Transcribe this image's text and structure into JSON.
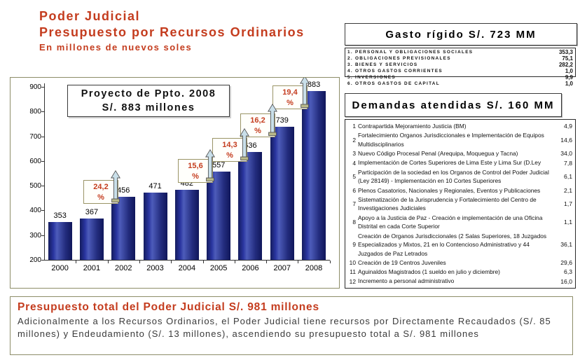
{
  "header": {
    "line1": "Poder Judicial",
    "line2": "Presupuesto por Recursos Ordinarios",
    "line3": "En millones de nuevos soles"
  },
  "chart": {
    "note_line1": "Proyecto de Ppto. 2008",
    "note_line2": "S/. 883 millones"
  },
  "chart_data": {
    "type": "bar",
    "title": "Proyecto de Ppto. 2008 S/. 883 millones",
    "categories": [
      "2000",
      "2001",
      "2002",
      "2003",
      "2004",
      "2005",
      "2006",
      "2007",
      "2008"
    ],
    "values": [
      353,
      367,
      456,
      471,
      482,
      557,
      636,
      739,
      883
    ],
    "bar_value_labels": [
      "353",
      "367",
      "456",
      "471",
      "482",
      "557",
      "636",
      "739",
      "883"
    ],
    "growth_callouts": [
      {
        "pct": "24,2",
        "unit": "%",
        "between": [
          "2001",
          "2002"
        ]
      },
      {
        "pct": "15,6",
        "unit": "%",
        "between": [
          "2004",
          "2005"
        ]
      },
      {
        "pct": "14,3",
        "unit": "%",
        "between": [
          "2005",
          "2006"
        ]
      },
      {
        "pct": "16,2",
        "unit": "%",
        "between": [
          "2006",
          "2007"
        ]
      },
      {
        "pct": "19,4",
        "unit": "%",
        "between": [
          "2007",
          "2008"
        ]
      }
    ],
    "ylim": [
      200,
      900
    ],
    "yticks": [
      200,
      300,
      400,
      500,
      600,
      700,
      800,
      900
    ],
    "xlabel": "",
    "ylabel": "",
    "grid": false,
    "legend": false,
    "bar_color": "#232c7e",
    "arrow_color": "#c9dfe9",
    "callout_text_color": "#c43c1e"
  },
  "gasto": {
    "title": "Gasto rígido S/. 723 MM",
    "items": [
      {
        "label": "1. PERSONAL Y OBLIGACIONES SOCIALES",
        "value": "353,3"
      },
      {
        "label": "2. OBLIGACIONES PREVISIONALES",
        "value": "75,1"
      },
      {
        "label": "3. BIENES Y SERVICIOS",
        "value": "282,2"
      },
      {
        "label": "4. OTROS GASTOS CORRIENTES",
        "value": "1,0"
      },
      {
        "label": "5. INVERSIONES",
        "value": "9,9"
      },
      {
        "label": "6. OTROS GASTOS DE CAPITAL",
        "value": "1,0"
      }
    ]
  },
  "demandas": {
    "title": "Demandas atendidas S/. 160 MM",
    "items": [
      {
        "num": "1",
        "label": "Contrapartida Mejoramiento Justicia (BM)",
        "value": "4,9"
      },
      {
        "num": "2",
        "label": "Fortalecimiento Organos Jurisdiccionales e Implementación de Equipos Multidisciplinarios",
        "value": "14,6"
      },
      {
        "num": "3",
        "label": "Nuevo Código Procesal Penal (Arequipa, Moquegua y Tacna)",
        "value": "34,0"
      },
      {
        "num": "4",
        "label": "Implementación de Cortes Superiores de Lima Este y Lima Sur (D.Ley",
        "value": "7,8"
      },
      {
        "num": "5",
        "label": "Participación de la sociedad en los Organos de Control del Poder Judicial (Ley 28149) - Implementación en 10 Cortes Superiores",
        "value": "6,1"
      },
      {
        "num": "6",
        "label": "Plenos Casatorios, Nacionales y Regionales, Eventos y Publicaciones",
        "value": "2,1"
      },
      {
        "num": "7",
        "label": "Sistematización de la Jurisprudencia y Fortalecimiento del Centro de Investigaciones Judiciales",
        "value": "1,7"
      },
      {
        "num": "8",
        "label": "Apoyo a la Justicia de Paz - Creación e implementación de una Oficina Distrital en cada Corte Superior",
        "value": "1,1"
      },
      {
        "num": "9",
        "label": "Creación de Organos Jurisdiccionales (2 Salas Superiores, 18 Juzgados Especializados y Mixtos, 21 en lo Contencioso Administrativo y 44 Juzgados de Paz Letrados",
        "value": "36,1"
      },
      {
        "num": "10",
        "label": "Creación de 19 Centros Juveniles",
        "value": "29,6"
      },
      {
        "num": "11",
        "label": "Aguinaldos Magistrados (1 sueldo en julio y diciembre)",
        "value": "6,3"
      },
      {
        "num": "12",
        "label": "Incremento a personal administrativo",
        "value": "16,0"
      }
    ]
  },
  "footer": {
    "title": "Presupuesto total del Poder Judicial S/. 981 millones",
    "body": "Adicionalmente a los Recursos Ordinarios, el Poder Judicial tiene recursos por Directamente Recaudados (S/. 85 millones) y Endeudamiento (S/. 13 millones), ascendiendo su presupuesto total a S/. 981 millones"
  }
}
